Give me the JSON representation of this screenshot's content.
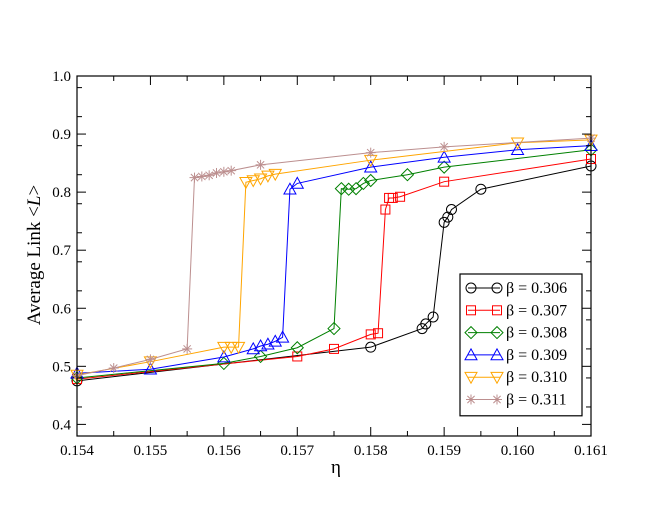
{
  "chart_data": {
    "type": "line",
    "xlabel": "η",
    "ylabel_prefix": "Average Link <",
    "ylabel_var": "L",
    "ylabel_suffix": ">",
    "xlim": [
      0.154,
      0.161
    ],
    "ylim": [
      0.38,
      1.0
    ],
    "x_ticks": [
      0.154,
      0.155,
      0.156,
      0.157,
      0.158,
      0.159,
      0.16,
      0.161
    ],
    "x_tick_labels": [
      "0.154",
      "0.155",
      "0.156",
      "0.157",
      "0.158",
      "0.159",
      "0.160",
      "0.161"
    ],
    "y_ticks": [
      0.4,
      0.5,
      0.6,
      0.7,
      0.8,
      0.9,
      1.0
    ],
    "y_tick_labels": [
      "0.4",
      "0.5",
      "0.6",
      "0.7",
      "0.8",
      "0.9",
      "1.0"
    ],
    "legend_position": "right",
    "series": [
      {
        "name": "β = 0.306",
        "color": "#000000",
        "marker": "circle",
        "x": [
          0.154,
          0.158,
          0.1587,
          0.15875,
          0.15885,
          0.159,
          0.15905,
          0.1591,
          0.1595,
          0.161
        ],
        "y": [
          0.475,
          0.533,
          0.565,
          0.573,
          0.585,
          0.748,
          0.757,
          0.77,
          0.805,
          0.845
        ]
      },
      {
        "name": "β = 0.307",
        "color": "#ff0000",
        "marker": "square",
        "x": [
          0.154,
          0.157,
          0.1575,
          0.158,
          0.1581,
          0.1582,
          0.15825,
          0.1583,
          0.1584,
          0.159,
          0.161
        ],
        "y": [
          0.478,
          0.517,
          0.53,
          0.555,
          0.557,
          0.77,
          0.79,
          0.79,
          0.792,
          0.818,
          0.857
        ]
      },
      {
        "name": "β = 0.308",
        "color": "#008000",
        "marker": "diamond",
        "x": [
          0.154,
          0.156,
          0.1565,
          0.157,
          0.1575,
          0.1576,
          0.1577,
          0.1578,
          0.1579,
          0.158,
          0.1585,
          0.159,
          0.161
        ],
        "y": [
          0.48,
          0.505,
          0.517,
          0.532,
          0.565,
          0.806,
          0.805,
          0.806,
          0.815,
          0.82,
          0.83,
          0.843,
          0.873
        ]
      },
      {
        "name": "β = 0.309",
        "color": "#0000ff",
        "marker": "triangle-up",
        "x": [
          0.154,
          0.155,
          0.156,
          0.1564,
          0.1565,
          0.1566,
          0.1567,
          0.1568,
          0.1569,
          0.157,
          0.158,
          0.159,
          0.16,
          0.161
        ],
        "y": [
          0.488,
          0.495,
          0.516,
          0.53,
          0.535,
          0.538,
          0.543,
          0.55,
          0.805,
          0.815,
          0.843,
          0.86,
          0.873,
          0.88
        ]
      },
      {
        "name": "β = 0.310",
        "color": "#ffa500",
        "marker": "triangle-down",
        "x": [
          0.154,
          0.155,
          0.156,
          0.1561,
          0.1562,
          0.1563,
          0.1564,
          0.1565,
          0.1566,
          0.1567,
          0.158,
          0.16,
          0.161
        ],
        "y": [
          0.485,
          0.508,
          0.533,
          0.533,
          0.533,
          0.817,
          0.82,
          0.823,
          0.828,
          0.831,
          0.855,
          0.885,
          0.89
        ]
      },
      {
        "name": "β = 0.311",
        "color": "#bc8f8f",
        "marker": "star",
        "x": [
          0.154,
          0.1545,
          0.155,
          0.1555,
          0.1556,
          0.1557,
          0.1558,
          0.1559,
          0.156,
          0.1561,
          0.1565,
          0.158,
          0.159,
          0.161
        ],
        "y": [
          0.484,
          0.497,
          0.512,
          0.53,
          0.825,
          0.827,
          0.829,
          0.833,
          0.835,
          0.837,
          0.847,
          0.868,
          0.878,
          0.893
        ]
      }
    ]
  }
}
